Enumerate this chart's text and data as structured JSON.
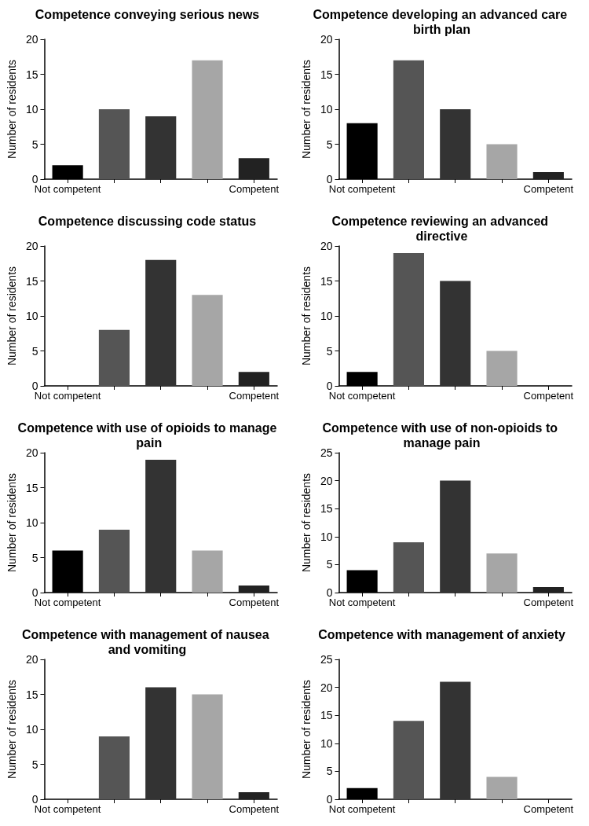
{
  "chart_data": [
    {
      "type": "bar",
      "title": "Competence conveying serious news",
      "ylabel": "Number of residents",
      "categories": [
        "Not competent",
        null,
        null,
        null,
        "Competent"
      ],
      "values": [
        2,
        10,
        9,
        17,
        3
      ],
      "colors": [
        "#000000",
        "#555555",
        "#333333",
        "#a6a6a6",
        "#222222"
      ],
      "ylim": [
        0,
        20
      ],
      "yticks": [
        0,
        5,
        10,
        15,
        20
      ],
      "grid": false
    },
    {
      "type": "bar",
      "title": "Competence developing an advanced care birth plan",
      "ylabel": "Number of residents",
      "categories": [
        "Not competent",
        null,
        null,
        null,
        "Competent"
      ],
      "values": [
        8,
        17,
        10,
        5,
        1
      ],
      "colors": [
        "#000000",
        "#555555",
        "#333333",
        "#a6a6a6",
        "#222222"
      ],
      "ylim": [
        0,
        20
      ],
      "yticks": [
        0,
        5,
        10,
        15,
        20
      ],
      "grid": false
    },
    {
      "type": "bar",
      "title": "Competence discussing code status",
      "ylabel": "Number of residents",
      "categories": [
        "Not competent",
        null,
        null,
        null,
        "Competent"
      ],
      "values": [
        0,
        8,
        18,
        13,
        2
      ],
      "colors": [
        "#000000",
        "#555555",
        "#333333",
        "#a6a6a6",
        "#222222"
      ],
      "ylim": [
        0,
        20
      ],
      "yticks": [
        0,
        5,
        10,
        15,
        20
      ],
      "grid": false
    },
    {
      "type": "bar",
      "title": "Competence reviewing an advanced directive",
      "ylabel": "Number of residents",
      "categories": [
        "Not competent",
        null,
        null,
        null,
        "Competent"
      ],
      "values": [
        2,
        19,
        15,
        5,
        0
      ],
      "colors": [
        "#000000",
        "#555555",
        "#333333",
        "#a6a6a6",
        "#222222"
      ],
      "ylim": [
        0,
        20
      ],
      "yticks": [
        0,
        5,
        10,
        15,
        20
      ],
      "grid": false
    },
    {
      "type": "bar",
      "title": "Competence with use of opioids to manage pain",
      "ylabel": "Number of residents",
      "categories": [
        "Not competent",
        null,
        null,
        null,
        "Competent"
      ],
      "values": [
        6,
        9,
        19,
        6,
        1
      ],
      "colors": [
        "#000000",
        "#555555",
        "#333333",
        "#a6a6a6",
        "#222222"
      ],
      "ylim": [
        0,
        20
      ],
      "yticks": [
        0,
        5,
        10,
        15,
        20
      ],
      "grid": false
    },
    {
      "type": "bar",
      "title": "Competence with use of non-opioids to manage pain",
      "ylabel": "Number of residents",
      "categories": [
        "Not competent",
        null,
        null,
        null,
        "Competent"
      ],
      "values": [
        4,
        9,
        20,
        7,
        1
      ],
      "colors": [
        "#000000",
        "#555555",
        "#333333",
        "#a6a6a6",
        "#222222"
      ],
      "ylim": [
        0,
        25
      ],
      "yticks": [
        0,
        5,
        10,
        15,
        20,
        25
      ],
      "grid": false
    },
    {
      "type": "bar",
      "title": "Competence with management of nausea and vomiting",
      "ylabel": "Number of residents",
      "categories": [
        "Not competent",
        null,
        null,
        null,
        "Competent"
      ],
      "values": [
        0,
        9,
        16,
        15,
        1
      ],
      "colors": [
        "#000000",
        "#555555",
        "#333333",
        "#a6a6a6",
        "#222222"
      ],
      "ylim": [
        0,
        20
      ],
      "yticks": [
        0,
        5,
        10,
        15,
        20
      ],
      "grid": false
    },
    {
      "type": "bar",
      "title": "Competence with management of anxiety",
      "ylabel": "Number of residents",
      "categories": [
        "Not competent",
        null,
        null,
        null,
        "Competent"
      ],
      "values": [
        2,
        14,
        21,
        4,
        0
      ],
      "colors": [
        "#000000",
        "#555555",
        "#333333",
        "#a6a6a6",
        "#222222"
      ],
      "ylim": [
        0,
        25
      ],
      "yticks": [
        0,
        5,
        10,
        15,
        20,
        25
      ],
      "grid": false
    }
  ]
}
